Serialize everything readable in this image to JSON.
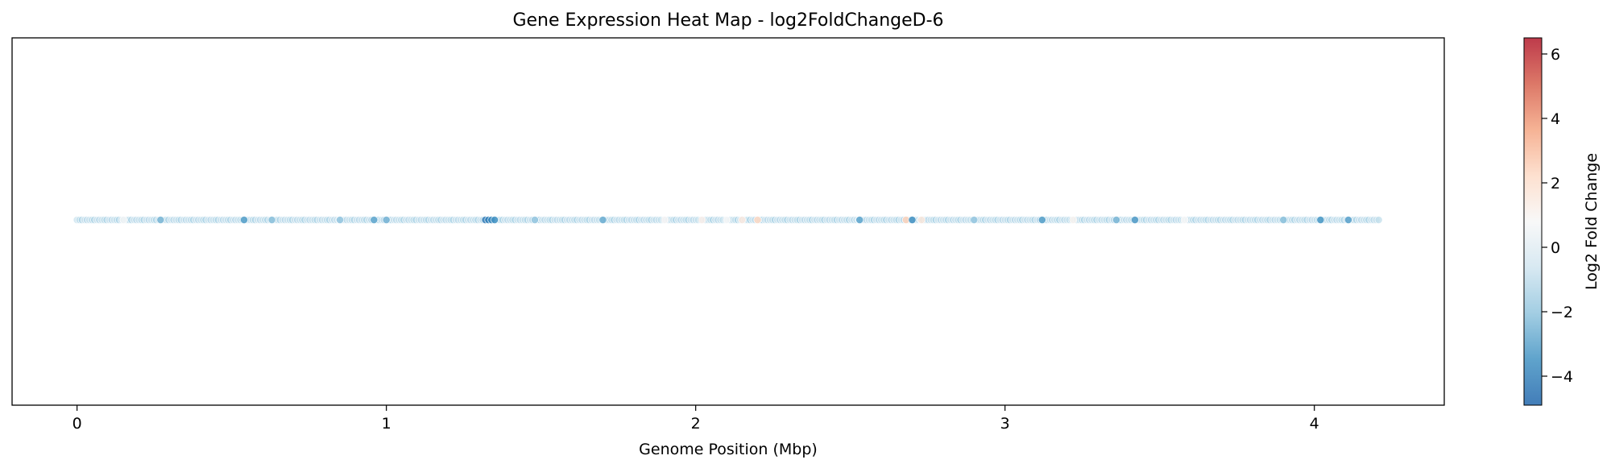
{
  "chart_data": {
    "type": "scatter",
    "title": "Gene Expression Heat Map - log2FoldChangeD-6",
    "xlabel": "Genome Position (Mbp)",
    "ylabel": "",
    "xlim": [
      -0.21,
      4.42
    ],
    "xticks": [
      "0",
      "1",
      "2",
      "3",
      "4"
    ],
    "grid": false,
    "marker_y_value": 0,
    "colorbar": {
      "label": "Log2 Fold Change",
      "range": [
        -4.9,
        6.5
      ],
      "ticks": [
        "−4",
        "−2",
        "0",
        "2",
        "4",
        "6"
      ],
      "colormap": "RdBu_r",
      "colors": [
        "#2166ac",
        "#4393c3",
        "#92c5de",
        "#d1e5f0",
        "#f7f7f7",
        "#fddbc7",
        "#f4a582",
        "#d6604d",
        "#b2182b"
      ]
    },
    "points": {
      "x_start": 0.0,
      "x_end": 4.21,
      "x_step": 0.008,
      "baseline_values": [
        -0.8,
        -1.0,
        -1.5,
        -0.6,
        -1.2
      ],
      "accent_points": [
        {
          "x": 0.15,
          "value": 0.6
        },
        {
          "x": 0.27,
          "value": -2.5
        },
        {
          "x": 0.54,
          "value": -3.2
        },
        {
          "x": 0.63,
          "value": -2.2
        },
        {
          "x": 0.85,
          "value": -2.0
        },
        {
          "x": 0.96,
          "value": -3.0
        },
        {
          "x": 1.0,
          "value": -2.6
        },
        {
          "x": 1.32,
          "value": -4.2
        },
        {
          "x": 1.33,
          "value": -4.0
        },
        {
          "x": 1.34,
          "value": -3.8
        },
        {
          "x": 1.35,
          "value": -3.5
        },
        {
          "x": 1.48,
          "value": -2.0
        },
        {
          "x": 1.7,
          "value": -2.8
        },
        {
          "x": 1.9,
          "value": 0.9
        },
        {
          "x": 2.02,
          "value": 1.2
        },
        {
          "x": 2.1,
          "value": 0.8
        },
        {
          "x": 2.15,
          "value": 1.5
        },
        {
          "x": 2.2,
          "value": 2.3
        },
        {
          "x": 2.53,
          "value": -3.0
        },
        {
          "x": 2.68,
          "value": 2.5
        },
        {
          "x": 2.7,
          "value": -3.6
        },
        {
          "x": 2.73,
          "value": 1.6
        },
        {
          "x": 2.9,
          "value": -2.0
        },
        {
          "x": 3.12,
          "value": -3.2
        },
        {
          "x": 3.22,
          "value": 1.0
        },
        {
          "x": 3.36,
          "value": -2.5
        },
        {
          "x": 3.42,
          "value": -3.3
        },
        {
          "x": 3.58,
          "value": 0.8
        },
        {
          "x": 3.9,
          "value": -2.2
        },
        {
          "x": 4.02,
          "value": -3.4
        },
        {
          "x": 4.11,
          "value": -3.1
        }
      ]
    }
  }
}
